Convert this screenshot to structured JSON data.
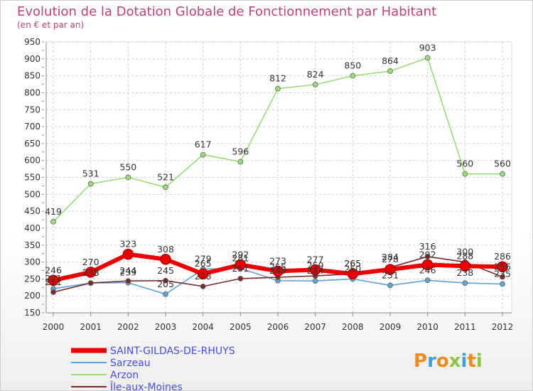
{
  "chart_data": {
    "type": "line",
    "title": "Evolution de la Dotation Globale de Fonctionnement par Habitant",
    "subtitle": "(en € et par an)",
    "x": [
      "2000",
      "2001",
      "2002",
      "2003",
      "2004",
      "2005",
      "2006",
      "2007",
      "2008",
      "2009",
      "2010",
      "2011",
      "2012"
    ],
    "ylim": [
      150,
      950
    ],
    "yticks": [
      150,
      200,
      250,
      300,
      350,
      400,
      450,
      500,
      550,
      600,
      650,
      700,
      750,
      800,
      850,
      900,
      950
    ],
    "grid": true,
    "series": [
      {
        "name": "SAINT-GILDAS-DE-RHUYS",
        "color": "#ee0000",
        "values": [
          246,
          270,
          323,
          308,
          265,
          292,
          273,
          277,
          265,
          278,
          292,
          288,
          286
        ],
        "labels": [
          "246",
          "270",
          "323",
          "308",
          "265",
          "292",
          "273",
          "277",
          "265",
          "278",
          "292",
          "288",
          "286"
        ]
      },
      {
        "name": "Sarzeau",
        "color": "#5ba3d9",
        "values": [
          221,
          238,
          239,
          205,
          279,
          281,
          245,
          244,
          250,
          231,
          246,
          238,
          235
        ],
        "labels": [
          "221",
          "238",
          "239",
          "205",
          "279",
          "281",
          "245",
          "244",
          "250",
          "231",
          "246",
          "238",
          "235"
        ]
      },
      {
        "name": "Arzon",
        "color": "#99dd77",
        "values": [
          419,
          531,
          550,
          521,
          617,
          596,
          812,
          824,
          850,
          864,
          903,
          560,
          560
        ],
        "labels": [
          "419",
          "531",
          "550",
          "521",
          "617",
          "596",
          "812",
          "824",
          "850",
          "864",
          "903",
          "560",
          "560"
        ]
      },
      {
        "name": "Île-aux-Moines",
        "color": "#7a2a2a",
        "values": [
          211,
          238,
          244,
          245,
          228,
          251,
          255,
          259,
          265,
          284,
          316,
          300,
          256
        ],
        "labels": [
          "211",
          "238",
          "244",
          "245",
          "228",
          "251",
          "255",
          "259",
          "265",
          "284",
          "316",
          "300",
          "256"
        ]
      }
    ]
  },
  "logo": {
    "text": "Proxiti"
  }
}
